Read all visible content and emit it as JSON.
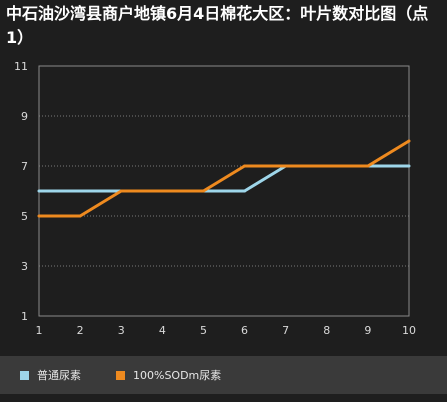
{
  "title": "中石油沙湾县商户地镇6月4日棉花大区：叶片数对比图（点1）",
  "colors": {
    "background": "#1e1e1e",
    "plot_border": "#8a8a8a",
    "grid": "#7a7a7a",
    "legend_background": "#3a3a3a",
    "series_1": "#9ed6ea",
    "series_2": "#ee8a1f"
  },
  "chart_data": {
    "type": "line",
    "title": "中石油沙湾县商户地镇6月4日棉花大区：叶片数对比图（点1）",
    "xlabel": "",
    "ylabel": "",
    "x": [
      1,
      2,
      3,
      4,
      5,
      6,
      7,
      8,
      9,
      10
    ],
    "x_ticks": [
      "1",
      "2",
      "3",
      "4",
      "5",
      "6",
      "7",
      "8",
      "9",
      "10"
    ],
    "y_ticks": [
      "1",
      "3",
      "5",
      "7",
      "9",
      "11"
    ],
    "ylim": [
      1,
      11
    ],
    "grid": true,
    "legend_position": "bottom",
    "series": [
      {
        "name": "普通尿素",
        "values": [
          6,
          6,
          6,
          6,
          6,
          6,
          7,
          7,
          7,
          7
        ],
        "color": "#9ed6ea"
      },
      {
        "name": "100%SODm尿素",
        "values": [
          5,
          5,
          6,
          6,
          6,
          7,
          7,
          7,
          7,
          8
        ],
        "color": "#ee8a1f"
      }
    ]
  }
}
